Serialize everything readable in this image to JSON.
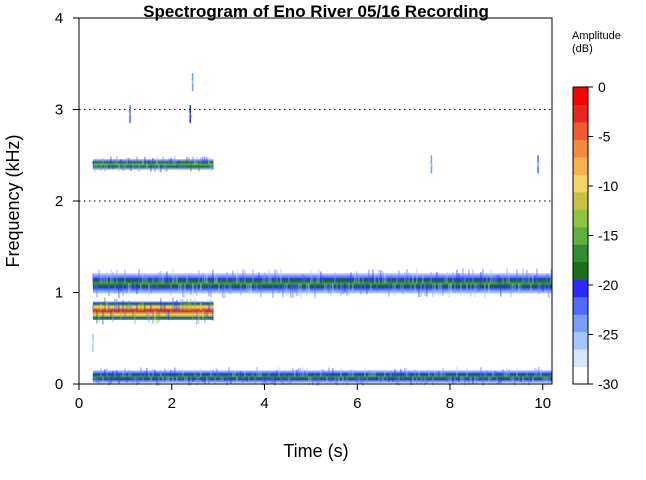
{
  "chart_data": {
    "type": "heatmap",
    "title": "Spectrogram of Eno River 05/16 Recording",
    "xlabel": "Time (s)",
    "ylabel": "Frequency (kHz)",
    "xlim": [
      0,
      10.2
    ],
    "ylim": [
      0,
      4
    ],
    "x_ticks": [
      0,
      2,
      4,
      6,
      8,
      10
    ],
    "y_ticks": [
      0,
      1,
      2,
      3,
      4
    ],
    "y_gridlines": [
      2,
      3
    ],
    "grid_style": "dotted",
    "colorbar": {
      "title_line1": "Amplitude",
      "title_line2": "(dB)",
      "range": [
        -30,
        0
      ],
      "ticks": [
        0,
        -5,
        -10,
        -15,
        -20,
        -25,
        -30
      ],
      "colors_low_to_high": [
        "#ffffff",
        "#d6e6ff",
        "#a6c6ff",
        "#7a9cff",
        "#4f6bff",
        "#2a2aff",
        "#1b6e1b",
        "#2f8f2f",
        "#5faf3f",
        "#8fc23f",
        "#c8c040",
        "#f5d56a",
        "#f8b050",
        "#f68a3c",
        "#f25a2e",
        "#e8281e",
        "#ff0000"
      ]
    },
    "bands": [
      {
        "t_start": 0.3,
        "t_end": 10.2,
        "f_center": 0.08,
        "f_halfwidth": 0.07,
        "peak_db": -16
      },
      {
        "t_start": 0.3,
        "t_end": 10.2,
        "f_center": 1.1,
        "f_halfwidth": 0.11,
        "peak_db": -17
      },
      {
        "t_start": 0.3,
        "t_end": 2.9,
        "f_center": 0.8,
        "f_halfwidth": 0.1,
        "peak_db": -1
      },
      {
        "t_start": 0.3,
        "t_end": 2.9,
        "f_center": 2.4,
        "f_halfwidth": 0.06,
        "peak_db": -15
      }
    ],
    "spots": [
      {
        "t": 1.1,
        "f": 2.95,
        "peak_db": -22
      },
      {
        "t": 2.4,
        "f": 2.95,
        "peak_db": -20
      },
      {
        "t": 2.45,
        "f": 3.3,
        "peak_db": -24
      },
      {
        "t": 7.6,
        "f": 2.4,
        "peak_db": -24
      },
      {
        "t": 9.9,
        "f": 2.4,
        "peak_db": -23
      },
      {
        "t": 0.3,
        "f": 0.45,
        "peak_db": -26
      }
    ]
  }
}
